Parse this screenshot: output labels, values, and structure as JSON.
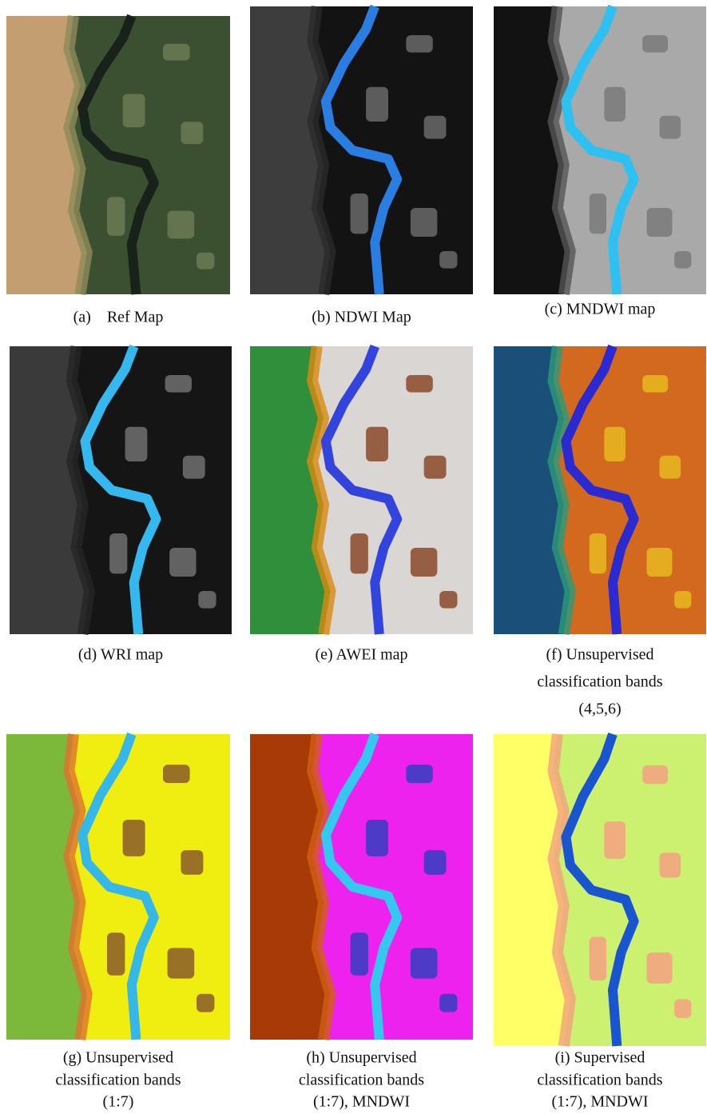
{
  "figure": {
    "panels": [
      {
        "caption_lines": [
          "(a)    Ref Map"
        ]
      },
      {
        "caption_lines": [
          "(b) NDWI Map"
        ]
      },
      {
        "caption_lines": [
          "(c) MNDWI map"
        ]
      },
      {
        "caption_lines": [
          "(d) WRI map"
        ]
      },
      {
        "caption_lines": [
          "(e) AWEI map"
        ]
      },
      {
        "caption_lines": [
          "(f) Unsupervised",
          "classification bands",
          "(4,5,6)"
        ]
      },
      {
        "caption_lines": [
          "(g) Unsupervised",
          "classification bands",
          "(1:7)"
        ]
      },
      {
        "caption_lines": [
          "(h) Unsupervised",
          "classification bands",
          "(1:7), MNDWI"
        ]
      },
      {
        "caption_lines": [
          "(i) Supervised",
          "classification bands",
          "(1:7), MNDWI"
        ]
      }
    ]
  }
}
